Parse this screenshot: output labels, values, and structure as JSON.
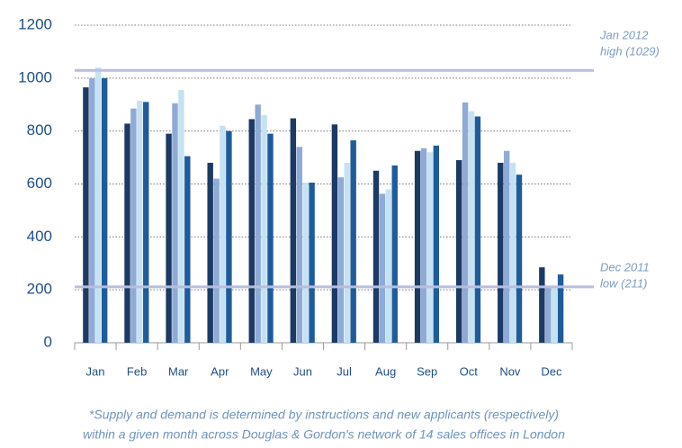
{
  "chart_data": {
    "type": "bar",
    "categories": [
      "Jan",
      "Feb",
      "Mar",
      "Apr",
      "May",
      "Jun",
      "Jul",
      "Aug",
      "Sep",
      "Oct",
      "Nov",
      "Dec"
    ],
    "series": [
      {
        "color": "#1c3a63",
        "values": [
          965,
          828,
          790,
          680,
          845,
          848,
          825,
          650,
          725,
          690,
          680,
          285
        ]
      },
      {
        "color": "#8eaad6",
        "values": [
          1000,
          885,
          905,
          620,
          900,
          740,
          625,
          563,
          735,
          908,
          725,
          211
        ]
      },
      {
        "color": "#c6e2f2",
        "values": [
          1040,
          915,
          955,
          820,
          860,
          605,
          680,
          580,
          720,
          875,
          680,
          211
        ]
      },
      {
        "color": "#1f5b9b",
        "values": [
          1000,
          910,
          705,
          800,
          790,
          605,
          765,
          670,
          745,
          855,
          635,
          258
        ]
      }
    ],
    "ylim": [
      0,
      1200
    ],
    "yticks": [
      0,
      200,
      400,
      600,
      800,
      1000,
      1200
    ],
    "grid": true,
    "reference_lines": [
      {
        "value": 1029,
        "label_lines": [
          "Jan 2012",
          "high (1029)"
        ]
      },
      {
        "value": 211,
        "label_lines": [
          "Dec 2011",
          "low (211)"
        ]
      }
    ],
    "footnote": [
      "*Supply and demand is determined by instructions and new applicants (respectively)",
      "within a given month across Douglas & Gordon's network of 14 sales offices in London"
    ]
  }
}
